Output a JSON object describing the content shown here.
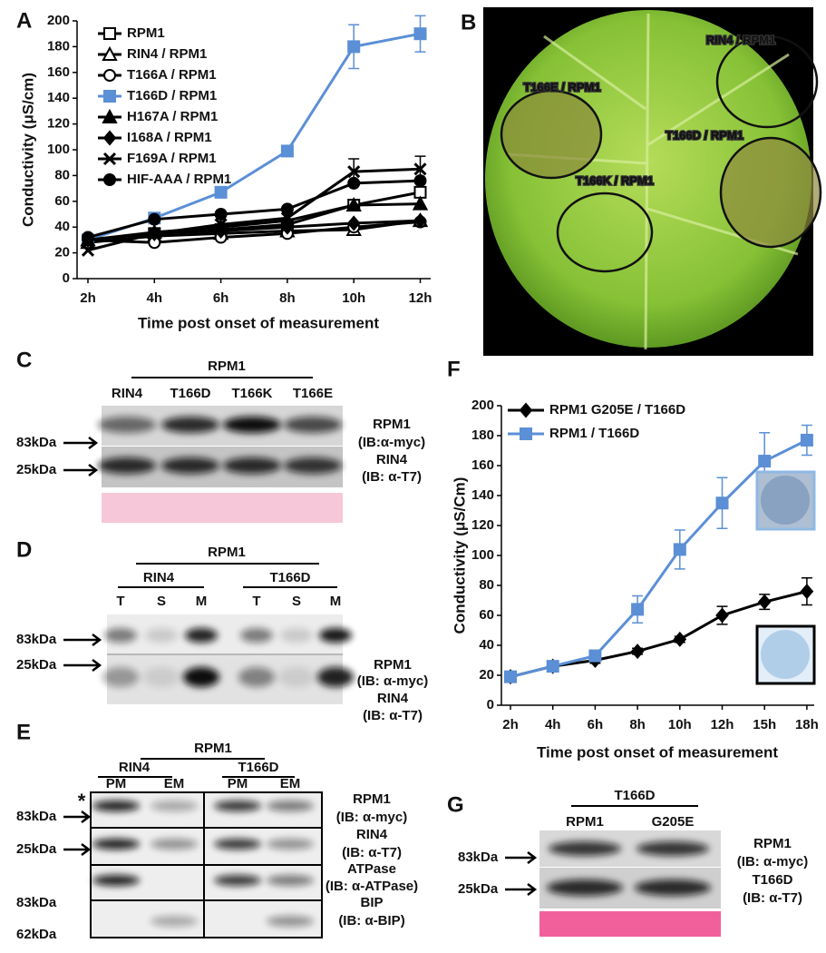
{
  "chart_data": [
    {
      "type": "line",
      "panel_label": "A",
      "y_label": "Conductivity (μS/cm)",
      "x_label": "Time post onset of measurement",
      "categories": [
        "2h",
        "4h",
        "6h",
        "8h",
        "10h",
        "12h"
      ],
      "ylim": [
        0,
        200
      ],
      "yticks": [
        0,
        20,
        40,
        60,
        80,
        100,
        120,
        140,
        160,
        180,
        200
      ],
      "legend": "upper-left",
      "series": [
        {
          "name": "RPM1",
          "color": "#000000",
          "marker": "square-open",
          "values": [
            30,
            35,
            38,
            42,
            57,
            67
          ]
        },
        {
          "name": "RIN4 / RPM1",
          "color": "#000000",
          "marker": "triangle-open",
          "values": [
            28,
            33,
            35,
            37,
            38,
            45
          ]
        },
        {
          "name": "T166A / RPM1",
          "color": "#000000",
          "marker": "circle-open",
          "values": [
            30,
            28,
            32,
            35,
            40,
            44
          ]
        },
        {
          "name": "T166D / RPM1",
          "color": "#5b8fd6",
          "marker": "square",
          "values": [
            30,
            47,
            67,
            99,
            180,
            190
          ],
          "errors": [
            0,
            2,
            2,
            4,
            17,
            14
          ]
        },
        {
          "name": "H167A / RPM1",
          "color": "#000000",
          "marker": "triangle",
          "values": [
            30,
            36,
            40,
            45,
            57,
            58
          ]
        },
        {
          "name": "I168A / RPM1",
          "color": "#000000",
          "marker": "diamond",
          "values": [
            30,
            35,
            37,
            40,
            43,
            45
          ]
        },
        {
          "name": "F169A / RPM1",
          "color": "#000000",
          "marker": "cross",
          "values": [
            22,
            35,
            42,
            47,
            83,
            85
          ],
          "errors": [
            0,
            0,
            0,
            0,
            10,
            10
          ]
        },
        {
          "name": "HIF-AAA / RPM1",
          "color": "#000000",
          "marker": "circle",
          "values": [
            32,
            46,
            50,
            54,
            74,
            76
          ]
        }
      ]
    },
    {
      "type": "line",
      "panel_label": "F",
      "y_label": "Conductivity (μS/Cm)",
      "x_label": "Time post onset of measurement",
      "categories": [
        "2h",
        "4h",
        "6h",
        "8h",
        "10h",
        "12h",
        "15h",
        "18h"
      ],
      "ylim": [
        0,
        200
      ],
      "yticks": [
        0,
        20,
        40,
        60,
        80,
        100,
        120,
        140,
        160,
        180,
        200
      ],
      "legend": "upper-left",
      "series": [
        {
          "name": "RPM1 G205E / T166D",
          "color": "#000000",
          "marker": "diamond",
          "values": [
            19,
            26,
            30,
            36,
            44,
            60,
            69,
            76
          ],
          "errors": [
            0,
            2,
            2,
            2,
            2,
            6,
            5,
            9
          ]
        },
        {
          "name": "RPM1 / T166D",
          "color": "#5b8fd6",
          "marker": "square",
          "values": [
            19,
            26,
            33,
            64,
            104,
            135,
            163,
            177
          ],
          "errors": [
            0,
            2,
            2,
            9,
            13,
            17,
            19,
            10
          ]
        }
      ]
    }
  ],
  "photo": {
    "panel_label": "B",
    "labels": [
      "RIN4 / RPM1",
      "T166E / RPM1",
      "T166D / RPM1",
      "T166K / RPM1"
    ]
  },
  "blot_c": {
    "panel_label": "C",
    "group": "RPM1",
    "lanes": [
      "RIN4",
      "T166D",
      "T166K",
      "T166E"
    ],
    "markers": [
      "83kDa",
      "25kDa"
    ],
    "probes": [
      "RPM1",
      "(IB:α-myc)",
      "RIN4",
      "(IB: α-T7)"
    ]
  },
  "blot_d": {
    "panel_label": "D",
    "group": "RPM1",
    "subgroups": [
      "RIN4",
      "T166D"
    ],
    "lanes": [
      "T",
      "S",
      "M",
      "T",
      "S",
      "M"
    ],
    "markers": [
      "83kDa",
      "25kDa"
    ],
    "probes": [
      "RPM1",
      "(IB: α-myc)",
      "RIN4",
      "(IB: α-T7)"
    ]
  },
  "blot_e": {
    "panel_label": "E",
    "group": "RPM1",
    "subgroups": [
      "RIN4",
      "T166D"
    ],
    "lanes": [
      "PM",
      "EM",
      "PM",
      "EM"
    ],
    "note": "*",
    "markers": [
      "83kDa",
      "25kDa",
      "83kDa",
      "62kDa"
    ],
    "probes": [
      "RPM1",
      "(IB: α-myc)",
      "RIN4",
      "(IB: α-T7)",
      "ATPase",
      "(IB: α-ATPase)",
      "BIP",
      "(IB: α-BIP)"
    ]
  },
  "blot_g": {
    "panel_label": "G",
    "group": "T166D",
    "lanes": [
      "RPM1",
      "G205E"
    ],
    "markers": [
      "83kDa",
      "25kDa"
    ],
    "probes": [
      "RPM1",
      "(IB: α-myc)",
      "T166D",
      "(IB: α-T7)"
    ]
  }
}
